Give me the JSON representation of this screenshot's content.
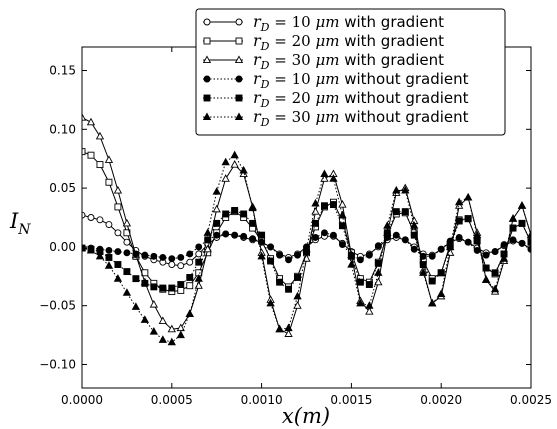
{
  "chart_data": {
    "type": "line",
    "xlabel": "x(m)",
    "ylabel": "I_N",
    "xlim": [
      0.0,
      0.0025
    ],
    "ylim": [
      -0.12,
      0.17
    ],
    "xticks": [
      "0.0000",
      "0.0005",
      "0.0010",
      "0.0015",
      "0.0020",
      "0.0025"
    ],
    "yticks": [
      "−0.10",
      "−0.05",
      "0.00",
      "0.05",
      "0.10",
      "0.15"
    ],
    "xtick_values": [
      0.0,
      0.0005,
      0.001,
      0.0015,
      0.002,
      0.0025
    ],
    "ytick_values": [
      -0.1,
      -0.05,
      0.0,
      0.05,
      0.1,
      0.15
    ],
    "grid": false,
    "legend_position": "top-right",
    "series": [
      {
        "name": "r_D = 10 μm with gradient",
        "legend_math": "r",
        "legend_sub": "D",
        "legend_eq": " = 10 ",
        "legend_mu": "μm",
        "legend_tail": " with gradient",
        "line_style": "solid",
        "marker": "circle",
        "marker_fill": "open",
        "x": [
          0.0,
          5e-05,
          0.0001,
          0.00015,
          0.0002,
          0.00025,
          0.0003,
          0.00035,
          0.0004,
          0.00045,
          0.0005,
          0.00055,
          0.0006,
          0.00065,
          0.0007,
          0.00075,
          0.0008,
          0.00085,
          0.0009,
          0.00095,
          0.001,
          0.00105,
          0.0011,
          0.00115,
          0.0012,
          0.00125,
          0.0013,
          0.00135,
          0.0014,
          0.00145,
          0.0015,
          0.00155,
          0.0016,
          0.00165,
          0.0017,
          0.00175,
          0.0018,
          0.00185,
          0.0019,
          0.00195,
          0.002,
          0.00205,
          0.0021,
          0.00215,
          0.0022,
          0.00225,
          0.0023,
          0.00235,
          0.0024,
          0.00245,
          0.0025
        ],
        "y": [
          0.027,
          0.025,
          0.023,
          0.019,
          0.012,
          0.004,
          -0.003,
          -0.008,
          -0.011,
          -0.013,
          -0.015,
          -0.016,
          -0.013,
          -0.006,
          0.002,
          0.008,
          0.011,
          0.01,
          0.008,
          0.006,
          0.004,
          0.0,
          -0.006,
          -0.009,
          -0.006,
          0.0,
          0.006,
          0.009,
          0.009,
          0.003,
          -0.004,
          -0.008,
          -0.006,
          0.0,
          0.006,
          0.008,
          0.006,
          0.0,
          -0.006,
          -0.007,
          -0.002,
          0.004,
          0.007,
          0.004,
          -0.001,
          -0.005,
          -0.004,
          0.001,
          0.005,
          0.003,
          -0.002
        ]
      },
      {
        "name": "r_D = 20 μm with gradient",
        "legend_math": "r",
        "legend_sub": "D",
        "legend_eq": " = 20 ",
        "legend_mu": "μm",
        "legend_tail": " with gradient",
        "line_style": "solid",
        "marker": "square",
        "marker_fill": "open",
        "x": [
          0.0,
          5e-05,
          0.0001,
          0.00015,
          0.0002,
          0.00025,
          0.0003,
          0.00035,
          0.0004,
          0.00045,
          0.0005,
          0.00055,
          0.0006,
          0.00065,
          0.0007,
          0.00075,
          0.0008,
          0.00085,
          0.0009,
          0.00095,
          0.001,
          0.00105,
          0.0011,
          0.00115,
          0.0012,
          0.00125,
          0.0013,
          0.00135,
          0.0014,
          0.00145,
          0.0015,
          0.00155,
          0.0016,
          0.00165,
          0.0017,
          0.00175,
          0.0018,
          0.00185,
          0.0019,
          0.00195,
          0.002,
          0.00205,
          0.0021,
          0.00215,
          0.0022,
          0.00225,
          0.0023,
          0.00235,
          0.0024,
          0.00245,
          0.0025
        ],
        "y": [
          0.081,
          0.078,
          0.07,
          0.055,
          0.034,
          0.012,
          -0.008,
          -0.022,
          -0.031,
          -0.036,
          -0.038,
          -0.037,
          -0.033,
          -0.022,
          -0.005,
          0.012,
          0.025,
          0.03,
          0.025,
          0.016,
          0.005,
          -0.01,
          -0.027,
          -0.034,
          -0.025,
          -0.005,
          0.017,
          0.034,
          0.038,
          0.022,
          -0.005,
          -0.027,
          -0.03,
          -0.013,
          0.01,
          0.028,
          0.029,
          0.012,
          -0.012,
          -0.027,
          -0.022,
          0.002,
          0.023,
          0.024,
          0.005,
          -0.018,
          -0.023,
          -0.006,
          0.016,
          0.02,
          0.004
        ]
      },
      {
        "name": "r_D = 30 μm with gradient",
        "legend_math": "r",
        "legend_sub": "D",
        "legend_eq": " = 30 ",
        "legend_mu": "μm",
        "legend_tail": " with gradient",
        "line_style": "solid",
        "marker": "triangle",
        "marker_fill": "open",
        "x": [
          0.0,
          5e-05,
          0.0001,
          0.00015,
          0.0002,
          0.00025,
          0.0003,
          0.00035,
          0.0004,
          0.00045,
          0.0005,
          0.00055,
          0.0006,
          0.00065,
          0.0007,
          0.00075,
          0.0008,
          0.00085,
          0.0009,
          0.00095,
          0.001,
          0.00105,
          0.0011,
          0.00115,
          0.0012,
          0.00125,
          0.0013,
          0.00135,
          0.0014,
          0.00145,
          0.0015,
          0.00155,
          0.0016,
          0.00165,
          0.0017,
          0.00175,
          0.0018,
          0.00185,
          0.0019,
          0.00195,
          0.002,
          0.00205,
          0.0021,
          0.00215,
          0.0022,
          0.00225,
          0.0023,
          0.00235,
          0.0024,
          0.00245,
          0.0025
        ],
        "y": [
          0.11,
          0.106,
          0.094,
          0.074,
          0.048,
          0.02,
          -0.007,
          -0.03,
          -0.049,
          -0.063,
          -0.07,
          -0.069,
          -0.057,
          -0.033,
          -0.002,
          0.032,
          0.058,
          0.07,
          0.062,
          0.034,
          -0.005,
          -0.045,
          -0.07,
          -0.074,
          -0.05,
          -0.01,
          0.03,
          0.058,
          0.062,
          0.036,
          -0.007,
          -0.046,
          -0.055,
          -0.03,
          0.012,
          0.046,
          0.05,
          0.022,
          -0.02,
          -0.048,
          -0.042,
          -0.005,
          0.035,
          0.042,
          0.012,
          -0.028,
          -0.038,
          -0.012,
          0.024,
          0.035,
          0.01
        ]
      },
      {
        "name": "r_D = 10 μm without gradient",
        "legend_math": "r",
        "legend_sub": "D",
        "legend_eq": " = 10 ",
        "legend_mu": "μm",
        "legend_tail": " without gradient",
        "line_style": "dotted",
        "marker": "circle",
        "marker_fill": "filled",
        "x": [
          0.0,
          5e-05,
          0.0001,
          0.00015,
          0.0002,
          0.00025,
          0.0003,
          0.00035,
          0.0004,
          0.00045,
          0.0005,
          0.00055,
          0.0006,
          0.00065,
          0.0007,
          0.00075,
          0.0008,
          0.00085,
          0.0009,
          0.00095,
          0.001,
          0.00105,
          0.0011,
          0.00115,
          0.0012,
          0.00125,
          0.0013,
          0.00135,
          0.0014,
          0.00145,
          0.0015,
          0.00155,
          0.0016,
          0.00165,
          0.0017,
          0.00175,
          0.0018,
          0.00185,
          0.0019,
          0.00195,
          0.002,
          0.00205,
          0.0021,
          0.00215,
          0.0022,
          0.00225,
          0.0023,
          0.00235,
          0.0024,
          0.00245,
          0.0025
        ],
        "y": [
          -0.001,
          -0.001,
          -0.002,
          -0.003,
          -0.004,
          -0.005,
          -0.006,
          -0.007,
          -0.008,
          -0.009,
          -0.01,
          -0.009,
          -0.006,
          0.0,
          0.006,
          0.01,
          0.011,
          0.01,
          0.009,
          0.007,
          0.004,
          0.0,
          -0.007,
          -0.011,
          -0.007,
          0.0,
          0.008,
          0.012,
          0.01,
          0.002,
          -0.007,
          -0.011,
          -0.007,
          0.001,
          0.008,
          0.01,
          0.006,
          -0.002,
          -0.008,
          -0.008,
          -0.002,
          0.005,
          0.008,
          0.004,
          -0.003,
          -0.007,
          -0.004,
          0.002,
          0.006,
          0.003,
          -0.002
        ]
      },
      {
        "name": "r_D = 20 μm without gradient",
        "legend_math": "r",
        "legend_sub": "D",
        "legend_eq": " = 20 ",
        "legend_mu": "μm",
        "legend_tail": " without gradient",
        "line_style": "dotted",
        "marker": "square",
        "marker_fill": "filled",
        "x": [
          0.0,
          5e-05,
          0.0001,
          0.00015,
          0.0002,
          0.00025,
          0.0003,
          0.00035,
          0.0004,
          0.00045,
          0.0005,
          0.00055,
          0.0006,
          0.00065,
          0.0007,
          0.00075,
          0.0008,
          0.00085,
          0.0009,
          0.00095,
          0.001,
          0.00105,
          0.0011,
          0.00115,
          0.0012,
          0.00125,
          0.0013,
          0.00135,
          0.0014,
          0.00145,
          0.0015,
          0.00155,
          0.0016,
          0.00165,
          0.0017,
          0.00175,
          0.0018,
          0.00185,
          0.0019,
          0.00195,
          0.002,
          0.00205,
          0.0021,
          0.00215,
          0.0022,
          0.00225,
          0.0023,
          0.00235,
          0.0024,
          0.00245,
          0.0025
        ],
        "y": [
          -0.001,
          -0.002,
          -0.004,
          -0.009,
          -0.015,
          -0.021,
          -0.027,
          -0.031,
          -0.034,
          -0.035,
          -0.035,
          -0.032,
          -0.026,
          -0.013,
          0.006,
          0.02,
          0.028,
          0.031,
          0.028,
          0.02,
          0.01,
          -0.012,
          -0.03,
          -0.036,
          -0.026,
          -0.004,
          0.02,
          0.035,
          0.036,
          0.018,
          -0.008,
          -0.03,
          -0.032,
          -0.014,
          0.012,
          0.03,
          0.03,
          0.01,
          -0.015,
          -0.029,
          -0.022,
          0.0,
          0.022,
          0.024,
          0.005,
          -0.018,
          -0.022,
          -0.006,
          0.016,
          0.02,
          0.004
        ]
      },
      {
        "name": "r_D = 30 μm without gradient",
        "legend_math": "r",
        "legend_sub": "D",
        "legend_eq": " = 30 ",
        "legend_mu": "μm",
        "legend_tail": " without gradient",
        "line_style": "dotted",
        "marker": "triangle",
        "marker_fill": "filled",
        "x": [
          0.0,
          5e-05,
          0.0001,
          0.00015,
          0.0002,
          0.00025,
          0.0003,
          0.00035,
          0.0004,
          0.00045,
          0.0005,
          0.00055,
          0.0006,
          0.00065,
          0.0007,
          0.00075,
          0.0008,
          0.00085,
          0.0009,
          0.00095,
          0.001,
          0.00105,
          0.0011,
          0.00115,
          0.0012,
          0.00125,
          0.0013,
          0.00135,
          0.0014,
          0.00145,
          0.0015,
          0.00155,
          0.0016,
          0.00165,
          0.0017,
          0.00175,
          0.0018,
          0.00185,
          0.0019,
          0.00195,
          0.002,
          0.00205,
          0.0021,
          0.00215,
          0.0022,
          0.00225,
          0.0023,
          0.00235,
          0.0024,
          0.00245,
          0.0025
        ],
        "y": [
          -0.001,
          -0.003,
          -0.008,
          -0.016,
          -0.027,
          -0.039,
          -0.051,
          -0.062,
          -0.072,
          -0.079,
          -0.081,
          -0.075,
          -0.057,
          -0.027,
          0.012,
          0.047,
          0.072,
          0.078,
          0.065,
          0.033,
          -0.008,
          -0.048,
          -0.07,
          -0.069,
          -0.042,
          -0.002,
          0.037,
          0.062,
          0.058,
          0.027,
          -0.015,
          -0.048,
          -0.05,
          -0.022,
          0.018,
          0.048,
          0.048,
          0.018,
          -0.022,
          -0.048,
          -0.04,
          0.0,
          0.038,
          0.042,
          0.01,
          -0.028,
          -0.036,
          -0.01,
          0.024,
          0.035,
          0.01
        ]
      }
    ]
  }
}
